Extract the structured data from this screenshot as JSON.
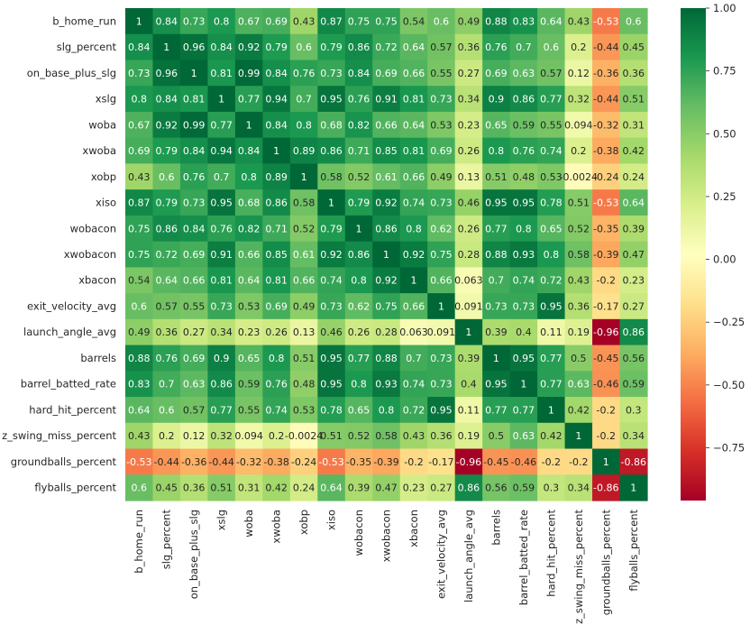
{
  "chart_data": {
    "type": "heatmap",
    "title": "",
    "xlabel": "",
    "ylabel": "",
    "labels": [
      "b_home_run",
      "slg_percent",
      "on_base_plus_slg",
      "xslg",
      "woba",
      "xwoba",
      "xobp",
      "xiso",
      "wobacon",
      "xwobacon",
      "xbacon",
      "exit_velocity_avg",
      "launch_angle_avg",
      "barrels",
      "barrel_batted_rate",
      "hard_hit_percent",
      "z_swing_miss_percent",
      "groundballs_percent",
      "flyballs_percent"
    ],
    "values": [
      [
        1,
        0.84,
        0.73,
        0.8,
        0.67,
        0.69,
        0.43,
        0.87,
        0.75,
        0.75,
        0.54,
        0.6,
        0.49,
        0.88,
        0.83,
        0.64,
        0.43,
        -0.53,
        0.6
      ],
      [
        0.84,
        1,
        0.96,
        0.84,
        0.92,
        0.79,
        0.6,
        0.79,
        0.86,
        0.72,
        0.64,
        0.57,
        0.36,
        0.76,
        0.7,
        0.6,
        0.2,
        -0.44,
        0.45
      ],
      [
        0.73,
        0.96,
        1,
        0.81,
        0.99,
        0.84,
        0.76,
        0.73,
        0.84,
        0.69,
        0.66,
        0.55,
        0.27,
        0.69,
        0.63,
        0.57,
        0.12,
        -0.36,
        0.36
      ],
      [
        0.8,
        0.84,
        0.81,
        1,
        0.77,
        0.94,
        0.7,
        0.95,
        0.76,
        0.91,
        0.81,
        0.73,
        0.34,
        0.9,
        0.86,
        0.77,
        0.32,
        -0.44,
        0.51
      ],
      [
        0.67,
        0.92,
        0.99,
        0.77,
        1,
        0.84,
        0.8,
        0.68,
        0.82,
        0.66,
        0.64,
        0.53,
        0.23,
        0.65,
        0.59,
        0.55,
        0.094,
        -0.32,
        0.31
      ],
      [
        0.69,
        0.79,
        0.84,
        0.94,
        0.84,
        1,
        0.89,
        0.86,
        0.71,
        0.85,
        0.81,
        0.69,
        0.26,
        0.8,
        0.76,
        0.74,
        0.2,
        -0.38,
        0.42
      ],
      [
        0.43,
        0.6,
        0.76,
        0.7,
        0.8,
        0.89,
        1,
        0.58,
        0.52,
        0.61,
        0.66,
        0.49,
        0.13,
        0.51,
        0.48,
        0.53,
        -0.0024,
        -0.24,
        0.24
      ],
      [
        0.87,
        0.79,
        0.73,
        0.95,
        0.68,
        0.86,
        0.58,
        1,
        0.79,
        0.92,
        0.74,
        0.73,
        0.46,
        0.95,
        0.95,
        0.78,
        0.51,
        -0.53,
        0.64
      ],
      [
        0.75,
        0.86,
        0.84,
        0.76,
        0.82,
        0.71,
        0.52,
        0.79,
        1,
        0.86,
        0.8,
        0.62,
        0.26,
        0.77,
        0.8,
        0.65,
        0.52,
        -0.35,
        0.39
      ],
      [
        0.75,
        0.72,
        0.69,
        0.91,
        0.66,
        0.85,
        0.61,
        0.92,
        0.86,
        1,
        0.92,
        0.75,
        0.28,
        0.88,
        0.93,
        0.8,
        0.58,
        -0.39,
        0.47
      ],
      [
        0.54,
        0.64,
        0.66,
        0.81,
        0.64,
        0.81,
        0.66,
        0.74,
        0.8,
        0.92,
        1,
        0.66,
        0.063,
        0.7,
        0.74,
        0.72,
        0.43,
        -0.2,
        0.23
      ],
      [
        0.6,
        0.57,
        0.55,
        0.73,
        0.53,
        0.69,
        0.49,
        0.73,
        0.62,
        0.75,
        0.66,
        1,
        0.091,
        0.73,
        0.73,
        0.95,
        0.36,
        -0.17,
        0.27
      ],
      [
        0.49,
        0.36,
        0.27,
        0.34,
        0.23,
        0.26,
        0.13,
        0.46,
        0.26,
        0.28,
        0.063,
        0.091,
        1,
        0.39,
        0.4,
        0.11,
        0.19,
        -0.96,
        0.86
      ],
      [
        0.88,
        0.76,
        0.69,
        0.9,
        0.65,
        0.8,
        0.51,
        0.95,
        0.77,
        0.88,
        0.7,
        0.73,
        0.39,
        1,
        0.95,
        0.77,
        0.5,
        -0.45,
        0.56
      ],
      [
        0.83,
        0.7,
        0.63,
        0.86,
        0.59,
        0.76,
        0.48,
        0.95,
        0.8,
        0.93,
        0.74,
        0.73,
        0.4,
        0.95,
        1,
        0.77,
        0.63,
        -0.46,
        0.59
      ],
      [
        0.64,
        0.6,
        0.57,
        0.77,
        0.55,
        0.74,
        0.53,
        0.78,
        0.65,
        0.8,
        0.72,
        0.95,
        0.11,
        0.77,
        0.77,
        1,
        0.42,
        -0.2,
        0.3
      ],
      [
        0.43,
        0.2,
        0.12,
        0.32,
        0.094,
        0.2,
        -0.0024,
        0.51,
        0.52,
        0.58,
        0.43,
        0.36,
        0.19,
        0.5,
        0.63,
        0.42,
        1,
        -0.2,
        0.34
      ],
      [
        -0.53,
        -0.44,
        -0.36,
        -0.44,
        -0.32,
        -0.38,
        -0.24,
        -0.53,
        -0.35,
        -0.39,
        -0.2,
        -0.17,
        -0.96,
        -0.45,
        -0.46,
        -0.2,
        -0.2,
        1,
        -0.86
      ],
      [
        0.6,
        0.45,
        0.36,
        0.51,
        0.31,
        0.42,
        0.24,
        0.64,
        0.39,
        0.47,
        0.23,
        0.27,
        0.86,
        0.56,
        0.59,
        0.3,
        0.34,
        -0.86,
        1
      ]
    ],
    "annotation_text": [
      [
        "1",
        "0.84",
        "0.73",
        "0.8",
        "0.67",
        "0.69",
        "0.43",
        "0.87",
        "0.75",
        "0.75",
        "0.54",
        "0.6",
        "0.49",
        "0.88",
        "0.83",
        "0.64",
        "0.43",
        "-0.53",
        "0.6"
      ],
      [
        "0.84",
        "1",
        "0.96",
        "0.84",
        "0.92",
        "0.79",
        "0.6",
        "0.79",
        "0.86",
        "0.72",
        "0.64",
        "0.57",
        "0.36",
        "0.76",
        "0.7",
        "0.6",
        "0.2",
        "-0.44",
        "0.45"
      ],
      [
        "0.73",
        "0.96",
        "1",
        "0.81",
        "0.99",
        "0.84",
        "0.76",
        "0.73",
        "0.84",
        "0.69",
        "0.66",
        "0.55",
        "0.27",
        "0.69",
        "0.63",
        "0.57",
        "0.12",
        "-0.36",
        "0.36"
      ],
      [
        "0.8",
        "0.84",
        "0.81",
        "1",
        "0.77",
        "0.94",
        "0.7",
        "0.95",
        "0.76",
        "0.91",
        "0.81",
        "0.73",
        "0.34",
        "0.9",
        "0.86",
        "0.77",
        "0.32",
        "-0.44",
        "0.51"
      ],
      [
        "0.67",
        "0.92",
        "0.99",
        "0.77",
        "1",
        "0.84",
        "0.8",
        "0.68",
        "0.82",
        "0.66",
        "0.64",
        "0.53",
        "0.23",
        "0.65",
        "0.59",
        "0.55",
        "0.094",
        "-0.32",
        "0.31"
      ],
      [
        "0.69",
        "0.79",
        "0.84",
        "0.94",
        "0.84",
        "1",
        "0.89",
        "0.86",
        "0.71",
        "0.85",
        "0.81",
        "0.69",
        "0.26",
        "0.8",
        "0.76",
        "0.74",
        "0.2",
        "-0.38",
        "0.42"
      ],
      [
        "0.43",
        "0.6",
        "0.76",
        "0.7",
        "0.8",
        "0.89",
        "1",
        "0.58",
        "0.52",
        "0.61",
        "0.66",
        "0.49",
        "0.13",
        "0.51",
        "0.48",
        "0.53",
        "-0.0024",
        "-0.24",
        "0.24"
      ],
      [
        "0.87",
        "0.79",
        "0.73",
        "0.95",
        "0.68",
        "0.86",
        "0.58",
        "1",
        "0.79",
        "0.92",
        "0.74",
        "0.73",
        "0.46",
        "0.95",
        "0.95",
        "0.78",
        "0.51",
        "-0.53",
        "0.64"
      ],
      [
        "0.75",
        "0.86",
        "0.84",
        "0.76",
        "0.82",
        "0.71",
        "0.52",
        "0.79",
        "1",
        "0.86",
        "0.8",
        "0.62",
        "0.26",
        "0.77",
        "0.8",
        "0.65",
        "0.52",
        "-0.35",
        "0.39"
      ],
      [
        "0.75",
        "0.72",
        "0.69",
        "0.91",
        "0.66",
        "0.85",
        "0.61",
        "0.92",
        "0.86",
        "1",
        "0.92",
        "0.75",
        "0.28",
        "0.88",
        "0.93",
        "0.8",
        "0.58",
        "-0.39",
        "0.47"
      ],
      [
        "0.54",
        "0.64",
        "0.66",
        "0.81",
        "0.64",
        "0.81",
        "0.66",
        "0.74",
        "0.8",
        "0.92",
        "1",
        "0.66",
        "0.063",
        "0.7",
        "0.74",
        "0.72",
        "0.43",
        "-0.2",
        "0.23"
      ],
      [
        "0.6",
        "0.57",
        "0.55",
        "0.73",
        "0.53",
        "0.69",
        "0.49",
        "0.73",
        "0.62",
        "0.75",
        "0.66",
        "1",
        "0.091",
        "0.73",
        "0.73",
        "0.95",
        "0.36",
        "-0.17",
        "0.27"
      ],
      [
        "0.49",
        "0.36",
        "0.27",
        "0.34",
        "0.23",
        "0.26",
        "0.13",
        "0.46",
        "0.26",
        "0.28",
        "0.063",
        "0.091",
        "1",
        "0.39",
        "0.4",
        "0.11",
        "0.19",
        "-0.96",
        "0.86"
      ],
      [
        "0.88",
        "0.76",
        "0.69",
        "0.9",
        "0.65",
        "0.8",
        "0.51",
        "0.95",
        "0.77",
        "0.88",
        "0.7",
        "0.73",
        "0.39",
        "1",
        "0.95",
        "0.77",
        "0.5",
        "-0.45",
        "0.56"
      ],
      [
        "0.83",
        "0.7",
        "0.63",
        "0.86",
        "0.59",
        "0.76",
        "0.48",
        "0.95",
        "0.8",
        "0.93",
        "0.74",
        "0.73",
        "0.4",
        "0.95",
        "1",
        "0.77",
        "0.63",
        "-0.46",
        "0.59"
      ],
      [
        "0.64",
        "0.6",
        "0.57",
        "0.77",
        "0.55",
        "0.74",
        "0.53",
        "0.78",
        "0.65",
        "0.8",
        "0.72",
        "0.95",
        "0.11",
        "0.77",
        "0.77",
        "1",
        "0.42",
        "-0.2",
        "0.3"
      ],
      [
        "0.43",
        "0.2",
        "0.12",
        "0.32",
        "0.094",
        "0.2",
        "-0.0024",
        "0.51",
        "0.52",
        "0.58",
        "0.43",
        "0.36",
        "0.19",
        "0.5",
        "0.63",
        "0.42",
        "1",
        "-0.2",
        "0.34"
      ],
      [
        "-0.53",
        "-0.44",
        "-0.36",
        "-0.44",
        "-0.32",
        "-0.38",
        "-0.24",
        "-0.53",
        "-0.35",
        "-0.39",
        "-0.2",
        "-0.17",
        "-0.96",
        "-0.45",
        "-0.46",
        "-0.2",
        "-0.2",
        "1",
        "-0.86"
      ],
      [
        "0.6",
        "0.45",
        "0.36",
        "0.51",
        "0.31",
        "0.42",
        "0.24",
        "0.64",
        "0.39",
        "0.47",
        "0.23",
        "0.27",
        "0.86",
        "0.56",
        "0.59",
        "0.3",
        "0.34",
        "-0.86",
        "1"
      ]
    ],
    "colorbar": {
      "vmin": -0.96,
      "vmax": 1.0,
      "ticks": [
        -0.75,
        -0.5,
        -0.25,
        0.0,
        0.25,
        0.5,
        0.75,
        1.0
      ],
      "tick_labels": [
        "−0.75",
        "−0.50",
        "−0.25",
        "0.00",
        "0.25",
        "0.50",
        "0.75",
        "1.00"
      ]
    },
    "colormap": {
      "name": "RdYlGn",
      "stops": [
        "#a50026",
        "#d73027",
        "#f46d43",
        "#fdae61",
        "#fee08b",
        "#ffffbf",
        "#d9ef8b",
        "#a6d96a",
        "#66bd63",
        "#1a9850",
        "#006837"
      ]
    },
    "annot": true,
    "grid": false,
    "legend": "colorbar-right"
  }
}
